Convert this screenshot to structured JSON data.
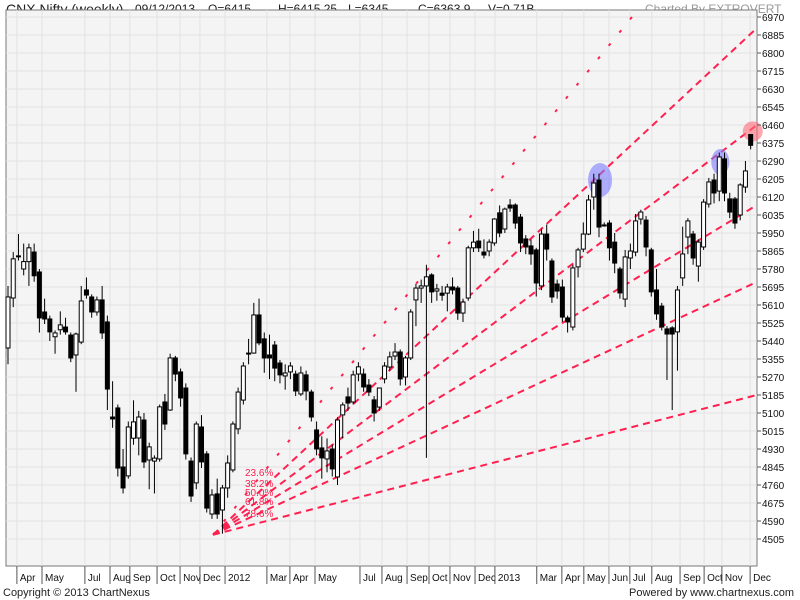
{
  "header": {
    "title": "CNX Nifty (weekly)",
    "date": "09/12/2013",
    "open": "O=6415",
    "high": "H=6415.25",
    "low": "L=6345",
    "close": "C=6363.9",
    "volume": "V=0.71B",
    "credit": "Charted By EXTROVERT"
  },
  "footer": {
    "copyright": "Copyright © 2013 ChartNexus",
    "powered": "Powered by www.chartnexus.com"
  },
  "colors": {
    "fan": "#ff2050",
    "highlight_blue": "#7b7bff",
    "highlight_red": "#ff6b7a",
    "plot_bg": "#f4f4f4",
    "grid": "#e2e2e2"
  },
  "chart_data": {
    "type": "candlestick",
    "title": "CNX Nifty (weekly)",
    "ylim": [
      4505,
      6970
    ],
    "y_ticks": [
      6970,
      6885,
      6800,
      6715,
      6630,
      6545,
      6460,
      6375,
      6290,
      6205,
      6120,
      6035,
      5950,
      5865,
      5780,
      5695,
      5610,
      5525,
      5440,
      5355,
      5270,
      5185,
      5100,
      5015,
      4930,
      4845,
      4760,
      4675,
      4590,
      4505
    ],
    "x_ticks": [
      {
        "label": "Apr",
        "index": 1.7
      },
      {
        "label": "May",
        "index": 6.5
      },
      {
        "label": "Jul",
        "index": 14.7
      },
      {
        "label": "Aug",
        "index": 19.5
      },
      {
        "label": "Sep",
        "index": 23.3
      },
      {
        "label": "Oct",
        "index": 28.5
      },
      {
        "label": "Nov",
        "index": 32.9
      },
      {
        "label": "Dec",
        "index": 36.7
      },
      {
        "label": "2012",
        "index": 41.5
      },
      {
        "label": "Mar",
        "index": 49.5
      },
      {
        "label": "Apr",
        "index": 53.9
      },
      {
        "label": "May",
        "index": 58.7
      },
      {
        "label": "Jul",
        "index": 67.3
      },
      {
        "label": "Aug",
        "index": 71.5
      },
      {
        "label": "Sep",
        "index": 76.3
      },
      {
        "label": "Oct",
        "index": 80.5
      },
      {
        "label": "Nov",
        "index": 84.5
      },
      {
        "label": "Dec",
        "index": 89.3
      },
      {
        "label": "2013",
        "index": 93.1
      },
      {
        "label": "Mar",
        "index": 101.1
      },
      {
        "label": "Apr",
        "index": 105.9
      },
      {
        "label": "May",
        "index": 110.1
      },
      {
        "label": "Jun",
        "index": 114.9
      },
      {
        "label": "Jul",
        "index": 118.9
      },
      {
        "label": "Aug",
        "index": 123.1
      },
      {
        "label": "Sep",
        "index": 128.5
      },
      {
        "label": "Oct",
        "index": 133.1
      },
      {
        "label": "Nov",
        "index": 136.5
      },
      {
        "label": "Dec",
        "index": 141.9
      }
    ],
    "candles_ohlc": [
      [
        5407,
        5700,
        5330,
        5648
      ],
      [
        5643,
        5860,
        5600,
        5828
      ],
      [
        5842,
        5945,
        5820,
        5842
      ],
      [
        5780,
        5900,
        5750,
        5815
      ],
      [
        5815,
        5900,
        5700,
        5880
      ],
      [
        5860,
        5900,
        5720,
        5748
      ],
      [
        5766,
        5780,
        5480,
        5549
      ],
      [
        5577,
        5640,
        5520,
        5544
      ],
      [
        5544,
        5560,
        5440,
        5483
      ],
      [
        5460,
        5490,
        5380,
        5478
      ],
      [
        5493,
        5580,
        5470,
        5516
      ],
      [
        5506,
        5550,
        5470,
        5483
      ],
      [
        5468,
        5480,
        5340,
        5360
      ],
      [
        5374,
        5480,
        5200,
        5473
      ],
      [
        5435,
        5700,
        5425,
        5629
      ],
      [
        5681,
        5740,
        5640,
        5657
      ],
      [
        5648,
        5660,
        5550,
        5577
      ],
      [
        5577,
        5650,
        5560,
        5634
      ],
      [
        5634,
        5700,
        5450,
        5478
      ],
      [
        5530,
        5560,
        5114,
        5213
      ],
      [
        5081,
        5250,
        5030,
        5072
      ],
      [
        5124,
        5140,
        4800,
        4840
      ],
      [
        4845,
        4930,
        4720,
        4746
      ],
      [
        4803,
        5060,
        4790,
        5034
      ],
      [
        4981,
        5160,
        4950,
        5058
      ],
      [
        4982,
        5110,
        4900,
        5081
      ],
      [
        5067,
        5100,
        4840,
        4869
      ],
      [
        4878,
        4960,
        4740,
        4940
      ],
      [
        4873,
        4900,
        4720,
        4887
      ],
      [
        4883,
        5140,
        4870,
        5129
      ],
      [
        5152,
        5190,
        5020,
        5048
      ],
      [
        5114,
        5380,
        5110,
        5360
      ],
      [
        5360,
        5370,
        5250,
        5284
      ],
      [
        5294,
        5310,
        5130,
        5171
      ],
      [
        5218,
        5240,
        4880,
        4907
      ],
      [
        4873,
        4890,
        4680,
        4708
      ],
      [
        4770,
        5060,
        4740,
        5048
      ],
      [
        5034,
        5090,
        4840,
        4869
      ],
      [
        4907,
        4920,
        4630,
        4651
      ],
      [
        4623,
        4740,
        4600,
        4713
      ],
      [
        4718,
        4790,
        4600,
        4623
      ],
      [
        4642,
        4760,
        4530,
        4746
      ],
      [
        4746,
        4900,
        4700,
        4864
      ],
      [
        4831,
        5060,
        4820,
        5048
      ],
      [
        5025,
        5220,
        5000,
        5199
      ],
      [
        5161,
        5340,
        5140,
        5322
      ],
      [
        5383,
        5450,
        5330,
        5383
      ],
      [
        5383,
        5620,
        5380,
        5563
      ],
      [
        5563,
        5640,
        5420,
        5431
      ],
      [
        5450,
        5480,
        5290,
        5360
      ],
      [
        5374,
        5470,
        5260,
        5360
      ],
      [
        5421,
        5440,
        5250,
        5312
      ],
      [
        5336,
        5350,
        5240,
        5280
      ],
      [
        5275,
        5330,
        5210,
        5289
      ],
      [
        5294,
        5340,
        5260,
        5322
      ],
      [
        5284,
        5300,
        5180,
        5204
      ],
      [
        5190,
        5320,
        5180,
        5289
      ],
      [
        5280,
        5300,
        5160,
        5204
      ],
      [
        5199,
        5210,
        5060,
        5081
      ],
      [
        5020,
        5060,
        4900,
        4930
      ],
      [
        4935,
        4990,
        4790,
        4888
      ],
      [
        4883,
        4980,
        4820,
        4921
      ],
      [
        4930,
        4950,
        4800,
        4836
      ],
      [
        4798,
        5080,
        4760,
        5067
      ],
      [
        5091,
        5150,
        4980,
        5138
      ],
      [
        5176,
        5220,
        5110,
        5147
      ],
      [
        5152,
        5300,
        5140,
        5280
      ],
      [
        5284,
        5340,
        5250,
        5318
      ],
      [
        5284,
        5310,
        5200,
        5223
      ],
      [
        5232,
        5260,
        5180,
        5199
      ],
      [
        5162,
        5180,
        5060,
        5100
      ],
      [
        5128,
        5220,
        5110,
        5218
      ],
      [
        5261,
        5340,
        5240,
        5322
      ],
      [
        5317,
        5390,
        5300,
        5365
      ],
      [
        5369,
        5430,
        5350,
        5388
      ],
      [
        5388,
        5400,
        5230,
        5261
      ],
      [
        5270,
        5370,
        5230,
        5360
      ],
      [
        5360,
        5590,
        5350,
        5577
      ],
      [
        5634,
        5710,
        5510,
        5690
      ],
      [
        5690,
        5730,
        5620,
        5700
      ],
      [
        5700,
        5800,
        4888,
        5743
      ],
      [
        5752,
        5760,
        5620,
        5672
      ],
      [
        5676,
        5710,
        5630,
        5686
      ],
      [
        5666,
        5700,
        5630,
        5656
      ],
      [
        5666,
        5710,
        5580,
        5695
      ],
      [
        5695,
        5740,
        5660,
        5681
      ],
      [
        5690,
        5700,
        5540,
        5572
      ],
      [
        5572,
        5640,
        5530,
        5624
      ],
      [
        5643,
        5890,
        5630,
        5880
      ],
      [
        5880,
        5960,
        5860,
        5907
      ],
      [
        5912,
        5970,
        5860,
        5880
      ],
      [
        5860,
        5920,
        5830,
        5846
      ],
      [
        5865,
        5920,
        5840,
        5907
      ],
      [
        5903,
        6020,
        5890,
        6016
      ],
      [
        6045,
        6080,
        5930,
        5950
      ],
      [
        5969,
        6070,
        5950,
        6063
      ],
      [
        6082,
        6110,
        6050,
        6068
      ],
      [
        6082,
        6090,
        5970,
        5997
      ],
      [
        6025,
        6040,
        5860,
        5903
      ],
      [
        5922,
        5940,
        5850,
        5884
      ],
      [
        5889,
        5920,
        5800,
        5851
      ],
      [
        5870,
        5880,
        5650,
        5714
      ],
      [
        5700,
        5970,
        5680,
        5945
      ],
      [
        5945,
        5990,
        5820,
        5874
      ],
      [
        5818,
        5830,
        5620,
        5648
      ],
      [
        5709,
        5730,
        5640,
        5676
      ],
      [
        5695,
        5730,
        5530,
        5553
      ],
      [
        5549,
        5560,
        5480,
        5530
      ],
      [
        5506,
        5800,
        5490,
        5785
      ],
      [
        5790,
        5880,
        5740,
        5870
      ],
      [
        5874,
        6000,
        5860,
        5945
      ],
      [
        5945,
        6130,
        5940,
        6106
      ],
      [
        6120,
        6230,
        6060,
        6186
      ],
      [
        6200,
        6230,
        5930,
        5978
      ],
      [
        5988,
        6000,
        5980,
        5988
      ],
      [
        5997,
        6010,
        5820,
        5880
      ],
      [
        5907,
        5950,
        5760,
        5808
      ],
      [
        5780,
        5790,
        5640,
        5667
      ],
      [
        5638,
        5870,
        5600,
        5837
      ],
      [
        5832,
        5900,
        5780,
        5865
      ],
      [
        5860,
        6040,
        5840,
        6007
      ],
      [
        6016,
        6060,
        5990,
        6049
      ],
      [
        6011,
        6030,
        5840,
        5884
      ],
      [
        5870,
        5880,
        5650,
        5672
      ],
      [
        5681,
        5780,
        5540,
        5568
      ],
      [
        5605,
        5620,
        5490,
        5506
      ],
      [
        5497,
        5510,
        5256,
        5473
      ],
      [
        5502,
        5510,
        5114,
        5473
      ],
      [
        5483,
        5700,
        5300,
        5681
      ],
      [
        5738,
        5980,
        5700,
        5851
      ],
      [
        5931,
        6020,
        5850,
        6007
      ],
      [
        5945,
        5960,
        5800,
        5832
      ],
      [
        5794,
        5920,
        5720,
        5907
      ],
      [
        5884,
        6110,
        5870,
        6096
      ],
      [
        6087,
        6210,
        6070,
        6191
      ],
      [
        6200,
        6230,
        6090,
        6139
      ],
      [
        6148,
        6330,
        6100,
        6309
      ],
      [
        6300,
        6330,
        6100,
        6139
      ],
      [
        6111,
        6140,
        6020,
        6049
      ],
      [
        6111,
        6120,
        5970,
        5997
      ],
      [
        6035,
        6185,
        6010,
        6177
      ],
      [
        6167,
        6290,
        6140,
        6243
      ],
      [
        6415,
        6415,
        6345,
        6364
      ]
    ],
    "fan": {
      "origin": {
        "index": 39.2,
        "price": 4525
      },
      "lines": [
        {
          "style": "dotted",
          "end_index": 119.3,
          "end_price": 6970
        },
        {
          "style": "dashed",
          "end_index": 143.2,
          "end_price": 6918
        },
        {
          "style": "dashed",
          "end_index": 143.2,
          "end_price": 6460
        },
        {
          "style": "dashed",
          "end_index": 143.2,
          "end_price": 6082
        },
        {
          "style": "dashed",
          "end_index": 143.2,
          "end_price": 5719
        },
        {
          "style": "dashed",
          "end_index": 143.2,
          "end_price": 5185
        }
      ],
      "labels": [
        "23.6%",
        "38.2%",
        "50.0%",
        "61.8%",
        "78.6%"
      ]
    },
    "highlights": [
      {
        "color": "blue",
        "index": 113.2,
        "price": 6200
      },
      {
        "color": "blue",
        "index": 136.2,
        "price": 6285
      },
      {
        "color": "red",
        "index": 142.4,
        "price": 6430
      }
    ]
  }
}
